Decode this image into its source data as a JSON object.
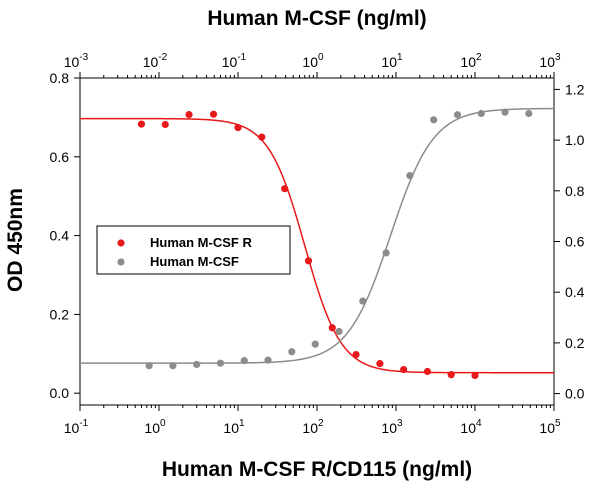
{
  "chart_data": {
    "type": "scatter",
    "title": "Human M-CSF (ng/ml)",
    "xlabel": "Human M-CSF R/CD115 (ng/ml)",
    "ylabel": "OD 450nm",
    "x_scale": "log",
    "x_bottom_lim": [
      0.1,
      100000
    ],
    "x_top_lim": [
      0.001,
      1000
    ],
    "y_left_lim": [
      -0.03,
      0.8
    ],
    "y_right_lim": [
      -0.045,
      1.245
    ],
    "x_bottom_ticks": [
      "10",
      "10",
      "10",
      "10",
      "10",
      "10",
      "10"
    ],
    "x_bottom_exps": [
      "-1",
      "0",
      "1",
      "2",
      "3",
      "4",
      "5"
    ],
    "x_top_ticks": [
      "10",
      "10",
      "10",
      "10",
      "10",
      "10",
      "10"
    ],
    "x_top_exps": [
      "-3",
      "-2",
      "-1",
      "0",
      "1",
      "2",
      "3"
    ],
    "y_left_ticks": [
      "0.0",
      "0.2",
      "0.4",
      "0.6",
      "0.8"
    ],
    "y_left_values": [
      0.0,
      0.2,
      0.4,
      0.6,
      0.8
    ],
    "y_right_ticks": [
      "0.0",
      "0.2",
      "0.4",
      "0.6",
      "0.8",
      "1.0",
      "1.2"
    ],
    "y_right_values": [
      0.0,
      0.2,
      0.4,
      0.6,
      0.8,
      1.0,
      1.2
    ],
    "legend_position": "middle-left",
    "series": [
      {
        "name": "Human M-CSF R",
        "color": "#e8191b",
        "axis": "bottom-left",
        "points": [
          [
            0.6,
            0.683
          ],
          [
            1.2,
            0.682
          ],
          [
            2.4,
            0.707
          ],
          [
            4.9,
            0.708
          ],
          [
            10,
            0.674
          ],
          [
            20,
            0.65
          ],
          [
            39,
            0.519
          ],
          [
            78,
            0.336
          ],
          [
            156,
            0.166
          ],
          [
            312,
            0.098
          ],
          [
            625,
            0.075
          ],
          [
            1250,
            0.06
          ],
          [
            2500,
            0.055
          ],
          [
            5000,
            0.047
          ],
          [
            10000,
            0.045
          ]
        ],
        "fit": {
          "top": 0.697,
          "bottom": 0.052,
          "ec50": 70,
          "hill": 1.9
        }
      },
      {
        "name": "Human M-CSF",
        "color": "#8c8c8c",
        "axis": "top-right",
        "points": [
          [
            0.0075,
            0.11
          ],
          [
            0.015,
            0.11
          ],
          [
            0.03,
            0.115
          ],
          [
            0.06,
            0.12
          ],
          [
            0.12,
            0.13
          ],
          [
            0.24,
            0.132
          ],
          [
            0.48,
            0.165
          ],
          [
            0.95,
            0.195
          ],
          [
            1.9,
            0.245
          ],
          [
            3.8,
            0.365
          ],
          [
            7.5,
            0.555
          ],
          [
            15,
            0.86
          ],
          [
            30,
            1.08
          ],
          [
            60,
            1.1
          ],
          [
            120,
            1.105
          ],
          [
            240,
            1.11
          ],
          [
            480,
            1.105
          ]
        ],
        "fit": {
          "top": 1.125,
          "bottom": 0.12,
          "ec50": 8.5,
          "hill": 1.6
        }
      }
    ]
  }
}
